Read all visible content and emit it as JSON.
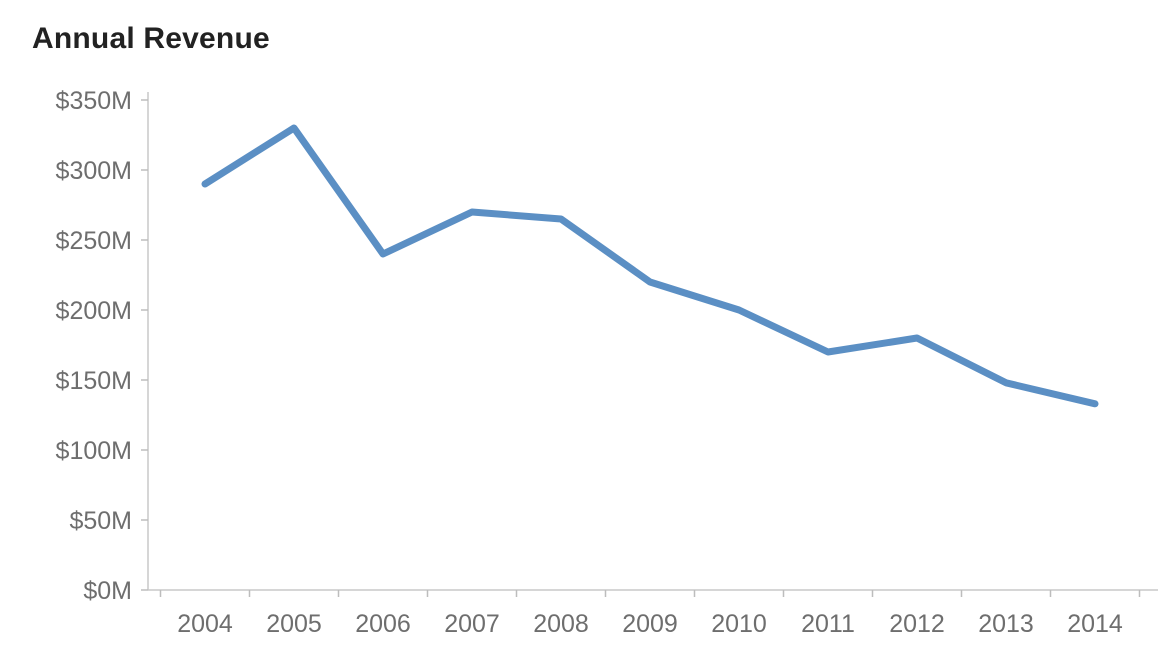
{
  "chart_data": {
    "type": "line",
    "title": "Annual Revenue",
    "categories": [
      "2004",
      "2005",
      "2006",
      "2007",
      "2008",
      "2009",
      "2010",
      "2011",
      "2012",
      "2013",
      "2014"
    ],
    "series": [
      {
        "name": "Annual Revenue",
        "values": [
          290,
          330,
          240,
          270,
          265,
          220,
          200,
          170,
          180,
          148,
          133
        ]
      }
    ],
    "xlabel": "",
    "ylabel": "",
    "ylim": [
      0,
      350
    ],
    "y_tick_step": 50,
    "y_tick_labels": [
      "$0M",
      "$50M",
      "$100M",
      "$150M",
      "$200M",
      "$250M",
      "$300M",
      "$350M"
    ],
    "grid": false,
    "legend_position": "none",
    "colors": {
      "line": "#5b8fc4",
      "axis": "#c9c9c9",
      "tick": "#bdbdbd",
      "label": "#6e6e6e",
      "title": "#222222"
    }
  }
}
